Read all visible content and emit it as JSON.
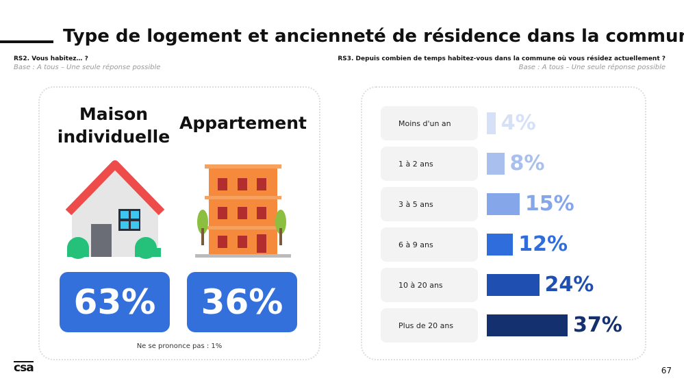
{
  "header": {
    "title": "Type de logement et ancienneté de résidence dans la commune"
  },
  "left": {
    "question": "RS2. Vous habitez… ?",
    "base": "Base : A tous – Une seule réponse possible",
    "items": [
      {
        "label": "Maison individuelle",
        "value": "63%"
      },
      {
        "label": "Appartement",
        "value": "36%"
      }
    ],
    "note": "Ne se prononce pas : 1%"
  },
  "chart_data": {
    "type": "bar",
    "orientation": "horizontal",
    "title": "RS3. Depuis combien de temps habitez-vous dans la commune où vous résidez actuellement ?",
    "subtitle": "Base : A tous – Une seule réponse possible",
    "categories": [
      "Moins d'un an",
      "1 à 2 ans",
      "3 à 5 ans",
      "6 à 9 ans",
      "10 à 20 ans",
      "Plus de 20 ans"
    ],
    "values": [
      4,
      8,
      15,
      12,
      24,
      37
    ],
    "value_labels": [
      "4%",
      "8%",
      "15%",
      "12%",
      "24%",
      "37%"
    ],
    "colors": [
      "#d6e0f6",
      "#a9c0ee",
      "#86a6ea",
      "#2f6ddc",
      "#1f4fb0",
      "#15306e"
    ]
  },
  "footer": {
    "logo": "csa",
    "page": "67"
  }
}
